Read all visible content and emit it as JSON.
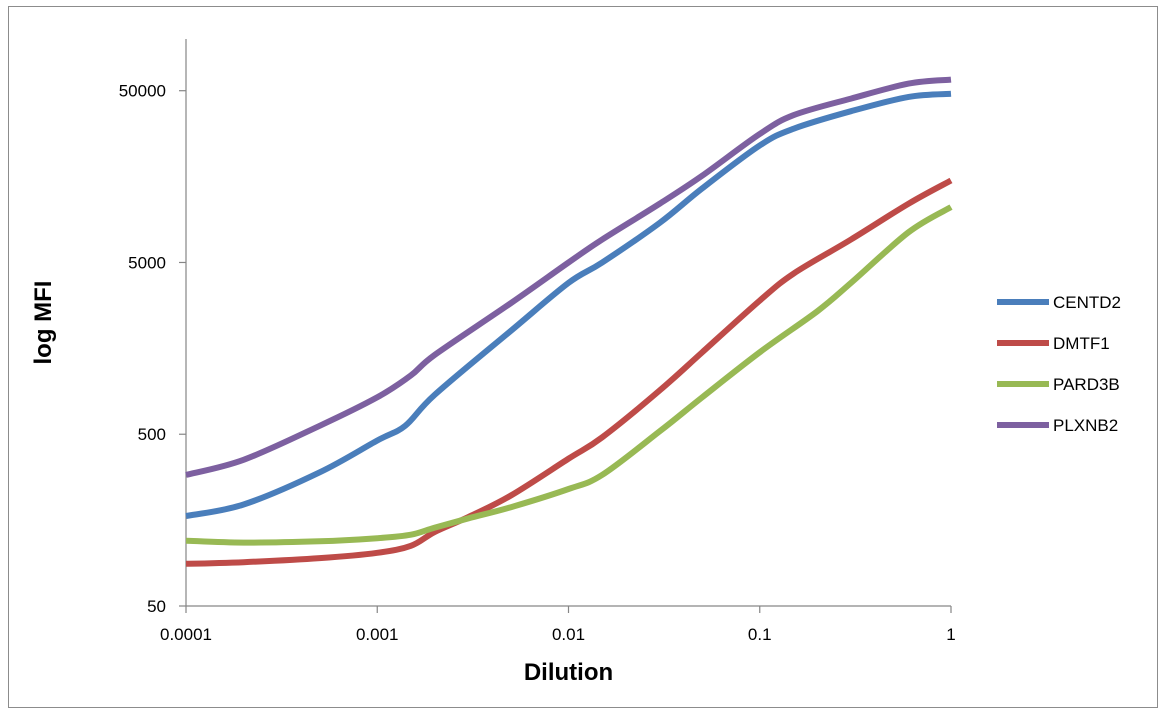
{
  "chart_data": {
    "type": "line",
    "title": "",
    "xlabel": "Dilution",
    "ylabel": "log MFI",
    "x_scale": "log",
    "y_scale": "log",
    "xlim": [
      0.0001,
      1
    ],
    "ylim": [
      50,
      100000
    ],
    "x_ticks": [
      {
        "value": 0.0001,
        "label": "0.0001"
      },
      {
        "value": 0.001,
        "label": "0.001"
      },
      {
        "value": 0.01,
        "label": "0.01"
      },
      {
        "value": 0.1,
        "label": "0.1"
      },
      {
        "value": 1,
        "label": "1"
      }
    ],
    "y_ticks": [
      {
        "value": 50,
        "label": "50"
      },
      {
        "value": 500,
        "label": "500"
      },
      {
        "value": 5000,
        "label": "5000"
      },
      {
        "value": 50000,
        "label": "50000"
      }
    ],
    "grid": false,
    "legend_position": "right",
    "series": [
      {
        "name": "CENTD2",
        "color": "#4a7ebb",
        "points": [
          [
            0.0001,
            167
          ],
          [
            0.0002,
            195
          ],
          [
            0.0005,
            300
          ],
          [
            0.001,
            460
          ],
          [
            0.0014,
            560
          ],
          [
            0.002,
            850
          ],
          [
            0.005,
            2000
          ],
          [
            0.01,
            3800
          ],
          [
            0.015,
            5000
          ],
          [
            0.03,
            8500
          ],
          [
            0.05,
            13500
          ],
          [
            0.1,
            24000
          ],
          [
            0.15,
            30000
          ],
          [
            0.3,
            38000
          ],
          [
            0.6,
            46000
          ],
          [
            1,
            48000
          ]
        ]
      },
      {
        "name": "DMTF1",
        "color": "#be4b48",
        "points": [
          [
            0.0001,
            88
          ],
          [
            0.0002,
            90
          ],
          [
            0.0005,
            95
          ],
          [
            0.001,
            102
          ],
          [
            0.0015,
            112
          ],
          [
            0.002,
            135
          ],
          [
            0.003,
            165
          ],
          [
            0.005,
            220
          ],
          [
            0.01,
            360
          ],
          [
            0.015,
            480
          ],
          [
            0.03,
            900
          ],
          [
            0.05,
            1500
          ],
          [
            0.1,
            3000
          ],
          [
            0.15,
            4300
          ],
          [
            0.3,
            6800
          ],
          [
            0.6,
            11000
          ],
          [
            1,
            15000
          ]
        ]
      },
      {
        "name": "PARD3B",
        "color": "#98b954",
        "points": [
          [
            0.0001,
            120
          ],
          [
            0.0002,
            117
          ],
          [
            0.0005,
            119
          ],
          [
            0.001,
            124
          ],
          [
            0.0015,
            130
          ],
          [
            0.002,
            143
          ],
          [
            0.003,
            162
          ],
          [
            0.005,
            188
          ],
          [
            0.01,
            240
          ],
          [
            0.015,
            290
          ],
          [
            0.03,
            520
          ],
          [
            0.05,
            820
          ],
          [
            0.1,
            1500
          ],
          [
            0.2,
            2600
          ],
          [
            0.3,
            3800
          ],
          [
            0.6,
            7500
          ],
          [
            1,
            10500
          ]
        ]
      },
      {
        "name": "PLXNB2",
        "color": "#7d60a0",
        "points": [
          [
            0.0001,
            290
          ],
          [
            0.0002,
            355
          ],
          [
            0.0005,
            560
          ],
          [
            0.001,
            820
          ],
          [
            0.0015,
            1100
          ],
          [
            0.002,
            1450
          ],
          [
            0.005,
            2900
          ],
          [
            0.01,
            5000
          ],
          [
            0.015,
            6800
          ],
          [
            0.03,
            11000
          ],
          [
            0.05,
            16000
          ],
          [
            0.1,
            28000
          ],
          [
            0.15,
            36000
          ],
          [
            0.3,
            45000
          ],
          [
            0.6,
            55000
          ],
          [
            1,
            58000
          ]
        ]
      }
    ]
  }
}
